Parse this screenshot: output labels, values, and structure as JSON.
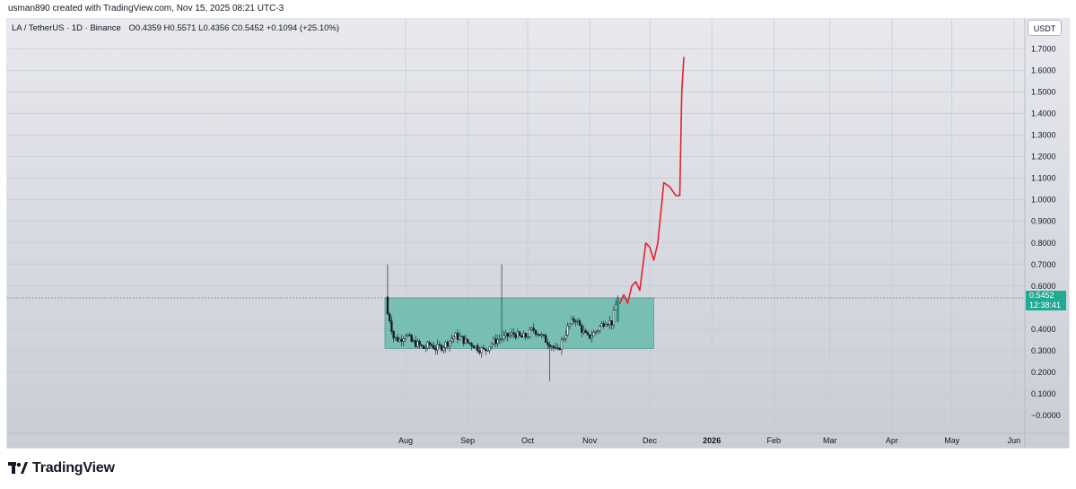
{
  "header": {
    "credit": "usman890 created with TradingView.com, Nov 15, 2025 08:21 UTC-3"
  },
  "legend": {
    "symbol": "LA / TetherUS · 1D · Binance",
    "open": "O0.4359",
    "high": "H0.5571",
    "low": "L0.4356",
    "close": "C0.5452",
    "change": "+0.1094 (+25.10%)"
  },
  "currency_button": "USDT",
  "price_tag": {
    "price": "0.5452",
    "countdown": "12:38:41"
  },
  "footer": {
    "logo_text": "TradingView"
  },
  "colors": {
    "up_candle": "#000000",
    "down_candle": "#000000",
    "range_box": "#5fb8a6",
    "projection_line": "#e8202a",
    "price_tag": "#22ab94"
  },
  "chart_data": {
    "type": "candlestick",
    "symbol": "LA / TetherUS",
    "interval": "1D",
    "exchange": "Binance",
    "y_axis": {
      "labels": [
        "1.7000",
        "1.6000",
        "1.5000",
        "1.4000",
        "1.3000",
        "1.2000",
        "1.1000",
        "1.0000",
        "0.9000",
        "0.8000",
        "0.7000",
        "0.6000",
        "0.4000",
        "0.3000",
        "0.2000",
        "0.1000",
        "−0.0000"
      ],
      "values": [
        1.7,
        1.6,
        1.5,
        1.4,
        1.3,
        1.2,
        1.1,
        1.0,
        0.9,
        0.8,
        0.7,
        0.6,
        0.4,
        0.3,
        0.2,
        0.1,
        0.0
      ],
      "range": [
        -0.1,
        1.78
      ]
    },
    "x_axis": {
      "labels": [
        "Aug",
        "Sep",
        "Oct",
        "Nov",
        "Dec",
        "2026",
        "Feb",
        "Mar",
        "Apr",
        "May",
        "Jun"
      ],
      "bold": [
        false,
        false,
        false,
        false,
        false,
        true,
        false,
        false,
        false,
        false,
        false
      ],
      "label_day_index": [
        0,
        31,
        61,
        92,
        122,
        153,
        184,
        212,
        243,
        273,
        304
      ],
      "start": "2025-07-23",
      "end": "2026-06-05"
    },
    "current_price": 0.5452,
    "candles_summary": {
      "first_date": "2025-07-23",
      "last_date": "2025-11-15",
      "open_path": [
        0.49,
        0.36,
        0.35,
        0.38,
        0.34,
        0.33,
        0.31,
        0.33,
        0.31,
        0.32,
        0.34,
        0.37,
        0.36,
        0.34,
        0.33,
        0.31,
        0.3,
        0.33,
        0.35,
        0.36,
        0.37,
        0.38,
        0.36,
        0.37,
        0.4,
        0.38,
        0.35,
        0.33,
        0.29,
        0.36,
        0.42,
        0.45,
        0.4,
        0.36,
        0.38,
        0.41,
        0.44,
        0.43,
        0.55
      ],
      "max_high": 0.7,
      "min_low": 0.16
    },
    "range_box": {
      "from": "2025-07-23",
      "to": "2025-12-03",
      "top": 0.545,
      "bottom": 0.31
    },
    "projection": {
      "from": "2025-11-16",
      "to": "2025-12-31",
      "points": [
        [
          0,
          0.52
        ],
        [
          2,
          0.56
        ],
        [
          4,
          0.52
        ],
        [
          6,
          0.6
        ],
        [
          8,
          0.62
        ],
        [
          10,
          0.58
        ],
        [
          13,
          0.8
        ],
        [
          15,
          0.78
        ],
        [
          17,
          0.72
        ],
        [
          19,
          0.8
        ],
        [
          22,
          1.08
        ],
        [
          25,
          1.06
        ],
        [
          28,
          1.02
        ],
        [
          30,
          1.02
        ],
        [
          31,
          1.5
        ],
        [
          32,
          1.66
        ]
      ]
    }
  }
}
